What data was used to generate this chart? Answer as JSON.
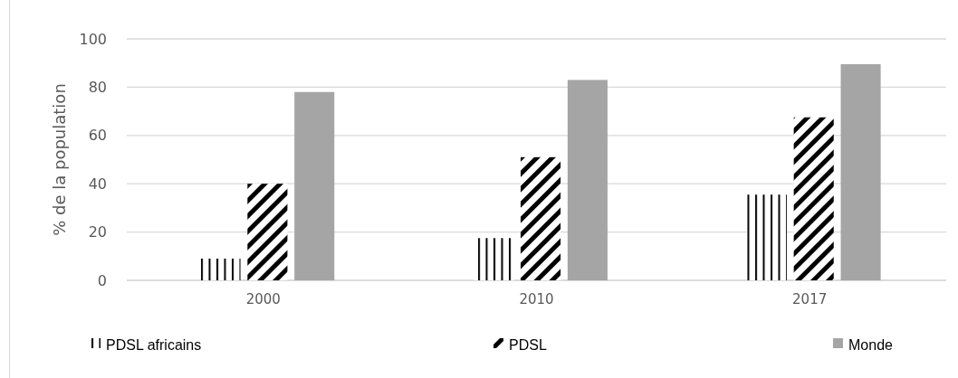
{
  "chart_data": {
    "type": "bar",
    "ylabel": "% de la population",
    "categories": [
      "2000",
      "2010",
      "2017"
    ],
    "series": [
      {
        "name": "PDSL africains",
        "color": "#000000",
        "values": [
          9,
          17.5,
          35.5
        ]
      },
      {
        "name": "PDSL",
        "color": "#000000",
        "values": [
          40,
          51,
          67.5
        ]
      },
      {
        "name": "Monde",
        "color": "#a5a5a5",
        "values": [
          78,
          83,
          89.5
        ]
      }
    ],
    "ylim": [
      0,
      100
    ],
    "yticks": [
      0,
      20,
      40,
      60,
      80,
      100
    ],
    "grid": "y",
    "legend": "bottom"
  }
}
